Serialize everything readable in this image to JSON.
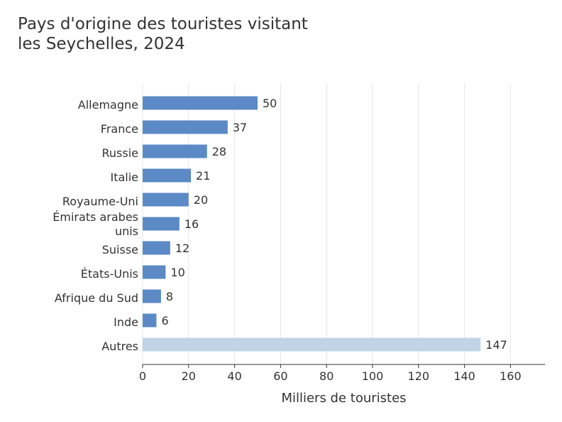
{
  "chart_data": {
    "type": "bar",
    "orientation": "horizontal",
    "title": "Pays d'origine des touristes visitant\nles Seychelles, 2024",
    "xlabel": "Milliers de touristes",
    "ylabel": "",
    "categories": [
      "Allemagne",
      "France",
      "Russie",
      "Italie",
      "Royaume-Uni",
      "Émirats arabes unis",
      "Suisse",
      "États-Unis",
      "Afrique du Sud",
      "Inde",
      "Autres"
    ],
    "category_lines": [
      [
        "Allemagne"
      ],
      [
        "France"
      ],
      [
        "Russie"
      ],
      [
        "Italie"
      ],
      [
        "Royaume-Uni"
      ],
      [
        "Émirats arabes",
        "unis"
      ],
      [
        "Suisse"
      ],
      [
        "États-Unis"
      ],
      [
        "Afrique du Sud"
      ],
      [
        "Inde"
      ],
      [
        "Autres"
      ]
    ],
    "values": [
      50,
      37,
      28,
      21,
      20,
      16,
      12,
      10,
      8,
      6,
      147
    ],
    "value_labels": [
      "50",
      "37",
      "28",
      "21",
      "20",
      "16",
      "12",
      "10",
      "8",
      "6",
      "147"
    ],
    "xlim": [
      0,
      175
    ],
    "xticks": [
      0,
      20,
      40,
      60,
      80,
      100,
      120,
      140,
      160
    ],
    "xtick_labels": [
      "0",
      "20",
      "40",
      "60",
      "80",
      "100",
      "120",
      "140",
      "160"
    ],
    "grid": "vertical",
    "legend": "none",
    "colors": {
      "bar": "#5b8ac6",
      "bar_other": "#c2d3e8",
      "grid": "#e5e5e5",
      "axis": "#333333",
      "text": "#333333"
    }
  }
}
